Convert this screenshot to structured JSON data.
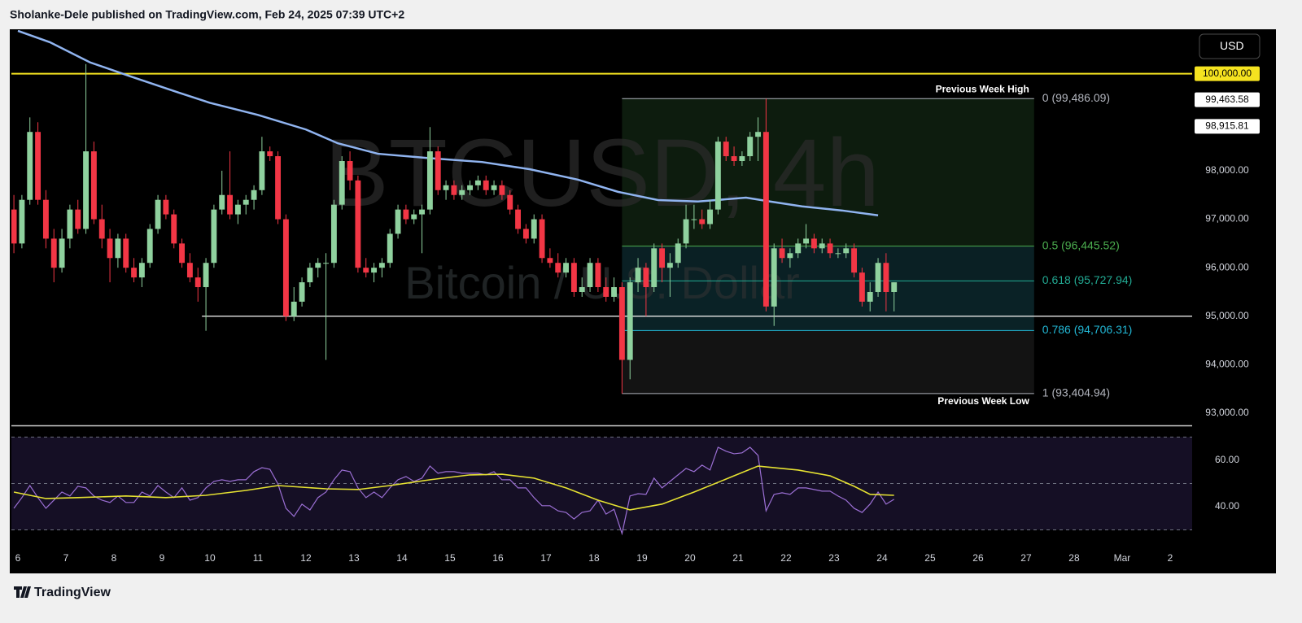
{
  "header": {
    "text": "Sholanke-Dele published on TradingView.com, Feb 24, 2025 07:39 UTC+2"
  },
  "footer": {
    "brand": "TradingView"
  },
  "chart_data": [
    {
      "type": "candlestick",
      "watermark": {
        "symbol": "BTCUSD, 4h",
        "description": "Bitcoin / U.S. Dollar"
      },
      "currency": "USD",
      "up_color": "#8fd19e",
      "down_color": "#f23645",
      "xlim": [
        -3.25,
        587
      ],
      "ylim": [
        92800,
        100900
      ],
      "yticks": [
        {
          "value": 93000,
          "label": "93,000.00"
        },
        {
          "value": 94000,
          "label": "94,000.00"
        },
        {
          "value": 95000,
          "label": "95,000.00"
        },
        {
          "value": 96000,
          "label": "96,000.00"
        },
        {
          "value": 97000,
          "label": "97,000.00"
        },
        {
          "value": 98000,
          "label": "98,000.00"
        }
      ],
      "xticks": [
        {
          "value": 0,
          "label": "6"
        },
        {
          "value": 24,
          "label": "7"
        },
        {
          "value": 48,
          "label": "8"
        },
        {
          "value": 72,
          "label": "9"
        },
        {
          "value": 96,
          "label": "10"
        },
        {
          "value": 120,
          "label": "11"
        },
        {
          "value": 144,
          "label": "12"
        },
        {
          "value": 168,
          "label": "13"
        },
        {
          "value": 192,
          "label": "14"
        },
        {
          "value": 216,
          "label": "15"
        },
        {
          "value": 240,
          "label": "16"
        },
        {
          "value": 264,
          "label": "17"
        },
        {
          "value": 288,
          "label": "18"
        },
        {
          "value": 312,
          "label": "19"
        },
        {
          "value": 336,
          "label": "20"
        },
        {
          "value": 360,
          "label": "21"
        },
        {
          "value": 384,
          "label": "22"
        },
        {
          "value": 408,
          "label": "23"
        },
        {
          "value": 432,
          "label": "24"
        },
        {
          "value": 456,
          "label": "25"
        },
        {
          "value": 480,
          "label": "26"
        },
        {
          "value": 504,
          "label": "27"
        },
        {
          "value": 528,
          "label": "28"
        },
        {
          "value": 552,
          "label": "Mar"
        },
        {
          "value": 576,
          "label": "2"
        }
      ],
      "grid": false,
      "x": [
        -2,
        2,
        6,
        10,
        14,
        18,
        22,
        26,
        30,
        34,
        38,
        42,
        46,
        50,
        54,
        58,
        62,
        66,
        70,
        74,
        78,
        82,
        86,
        90,
        94,
        98,
        102,
        106,
        110,
        114,
        118,
        122,
        126,
        130,
        134,
        138,
        142,
        146,
        150,
        154,
        158,
        162,
        166,
        170,
        174,
        178,
        182,
        186,
        190,
        194,
        198,
        202,
        206,
        210,
        214,
        218,
        222,
        226,
        230,
        234,
        238,
        242,
        246,
        250,
        254,
        258,
        262,
        266,
        270,
        274,
        278,
        282,
        286,
        290,
        294,
        298,
        302,
        306,
        310,
        314,
        318,
        322,
        326,
        330,
        334,
        338,
        342,
        346,
        350,
        354,
        358,
        362,
        366,
        370,
        374,
        378,
        382,
        386,
        390,
        394,
        398,
        402,
        406,
        410,
        414,
        418,
        422,
        426,
        430,
        434,
        438
      ],
      "open": [
        97200,
        96500,
        97400,
        98800,
        97400,
        96600,
        96000,
        96600,
        97200,
        96800,
        98400,
        97000,
        96600,
        96200,
        96600,
        96000,
        95800,
        96100,
        96800,
        97400,
        97100,
        96500,
        96100,
        95800,
        95600,
        96100,
        97200,
        97500,
        97100,
        97300,
        97400,
        97600,
        98400,
        98300,
        97000,
        95000,
        95300,
        95700,
        96000,
        96100,
        96100,
        97300,
        98200,
        97800,
        96000,
        95900,
        96000,
        96100,
        96700,
        97200,
        97000,
        97100,
        97200,
        98400,
        97600,
        97700,
        97500,
        97600,
        97700,
        97800,
        97600,
        97700,
        97500,
        97200,
        96800,
        96600,
        97000,
        96200,
        96100,
        95900,
        96100,
        95500,
        95600,
        96100,
        95600,
        95400,
        95600,
        94100,
        95700,
        96000,
        95600,
        96400,
        96000,
        96100,
        96500,
        97000,
        97000,
        96900,
        97200,
        98600,
        98300,
        98200,
        98300,
        98700,
        98800,
        95200,
        96400,
        96200,
        96300,
        96500,
        96600,
        96400,
        96500,
        96300,
        96300,
        96400,
        95900,
        95300,
        95500,
        96100,
        95500
      ],
      "high": [
        97500,
        97500,
        99100,
        99000,
        97600,
        96800,
        96800,
        97300,
        97400,
        100200,
        98600,
        97300,
        96800,
        96700,
        96700,
        96200,
        96200,
        96900,
        97500,
        97500,
        97200,
        96600,
        96300,
        96000,
        96200,
        97300,
        98000,
        98400,
        97400,
        97500,
        97700,
        98700,
        98500,
        98400,
        97100,
        95600,
        95800,
        96100,
        96200,
        96300,
        97400,
        98300,
        98400,
        97900,
        96200,
        96100,
        96200,
        96800,
        97300,
        97300,
        97200,
        97300,
        98900,
        98500,
        97800,
        97800,
        97700,
        97800,
        97900,
        97900,
        97800,
        97800,
        97600,
        97300,
        96900,
        97100,
        97100,
        96400,
        96300,
        96200,
        96200,
        95800,
        96200,
        96200,
        95800,
        95800,
        95700,
        95800,
        96200,
        96100,
        96500,
        96500,
        96300,
        96600,
        97300,
        97300,
        97200,
        97400,
        98700,
        98700,
        98500,
        98400,
        98800,
        99100,
        99486,
        96500,
        96600,
        96400,
        96600,
        96900,
        96700,
        96600,
        96600,
        96400,
        96500,
        96500,
        96000,
        95700,
        96200,
        96300,
        95700
      ],
      "low": [
        96300,
        96400,
        97300,
        97300,
        96400,
        95700,
        95900,
        96400,
        96700,
        96700,
        96900,
        96400,
        95700,
        96000,
        95900,
        95700,
        95600,
        96000,
        96700,
        97000,
        96400,
        96000,
        95700,
        95300,
        94700,
        96000,
        97100,
        97000,
        96900,
        97100,
        97200,
        97500,
        98200,
        96900,
        94900,
        94900,
        95200,
        95600,
        95800,
        94100,
        96000,
        97200,
        97600,
        95900,
        95800,
        95700,
        95800,
        96000,
        96600,
        96900,
        96900,
        96300,
        97100,
        97500,
        97400,
        97400,
        97400,
        97500,
        97600,
        97500,
        97500,
        97400,
        97100,
        96700,
        96500,
        96500,
        96100,
        96000,
        95800,
        95800,
        95400,
        95400,
        95500,
        95500,
        95300,
        95300,
        93405,
        93700,
        95500,
        95000,
        95500,
        95700,
        95400,
        96000,
        96400,
        96800,
        96800,
        96800,
        97100,
        98200,
        98100,
        98100,
        98200,
        98200,
        95100,
        94800,
        96100,
        96000,
        96200,
        96400,
        96300,
        96300,
        96200,
        96200,
        96200,
        95800,
        95200,
        95100,
        95400,
        95100,
        95100
      ],
      "close": [
        96500,
        97400,
        98800,
        97400,
        96600,
        96000,
        96600,
        97200,
        96800,
        98400,
        97000,
        96600,
        96200,
        96600,
        96000,
        95800,
        96100,
        96800,
        97400,
        97100,
        96500,
        96100,
        95800,
        95600,
        96100,
        97200,
        97500,
        97100,
        97300,
        97400,
        97600,
        98400,
        98300,
        97000,
        95000,
        95300,
        95700,
        96000,
        96100,
        96100,
        97300,
        98200,
        97800,
        96000,
        95900,
        96000,
        96100,
        96700,
        97200,
        97000,
        97100,
        97200,
        98400,
        97600,
        97700,
        97500,
        97600,
        97700,
        97800,
        97600,
        97700,
        97500,
        97200,
        96800,
        96600,
        97000,
        96200,
        96100,
        95900,
        96100,
        95500,
        95600,
        96100,
        95600,
        95400,
        95600,
        94100,
        95700,
        96000,
        95600,
        96400,
        96000,
        96100,
        96500,
        97000,
        97000,
        96900,
        97200,
        98600,
        98300,
        98200,
        98300,
        98700,
        98800,
        95200,
        96400,
        96200,
        96300,
        96500,
        96600,
        96400,
        96500,
        96300,
        96300,
        96400,
        95900,
        95300,
        95500,
        96100,
        95500,
        95700
      ],
      "series": [
        {
          "color": "#90b4f0",
          "x": [
            0,
            16,
            36,
            56,
            80,
            96,
            120,
            144,
            160,
            180,
            204,
            232,
            256,
            280,
            300,
            320,
            340,
            364,
            376,
            392,
            412,
            430
          ],
          "values": [
            100885,
            100650,
            100235,
            99950,
            99615,
            99400,
            99150,
            98850,
            98565,
            98350,
            98265,
            98180,
            98030,
            97815,
            97565,
            97395,
            97365,
            97445,
            97365,
            97265,
            97180,
            97080
          ]
        }
      ],
      "horizontal_lines": [
        {
          "value": 100000,
          "color": "#f5e320"
        },
        {
          "value": 95000,
          "color": "#e6e6e6",
          "x_start": 92
        }
      ],
      "price_labels": [
        {
          "value": 100000,
          "label": "100,000.00",
          "color": "#f5e320"
        },
        {
          "value": 99463.58,
          "label": "99,463.58",
          "color": "#ffffff"
        },
        {
          "value": 98915.81,
          "label": "98,915.81",
          "color": "#ffffff"
        }
      ],
      "fib": {
        "x": [
          302,
          508
        ],
        "high_label": "Previous Week High",
        "low_label": "Previous Week Low",
        "levels": [
          {
            "value": 99486.09,
            "label": "0 (99,486.09)",
            "color": "#b2b5be",
            "fill": "#0d1c0e"
          },
          {
            "value": 96445.52,
            "label": "0.5 (96,445.52)",
            "color": "#4caf50",
            "fill": "#0a2024"
          },
          {
            "value": 95727.94,
            "label": "0.618 (95,727.94)",
            "color": "#22ab94",
            "fill": "#0a2226"
          },
          {
            "value": 94706.31,
            "label": "0.786 (94,706.31)",
            "color": "#22b8d6",
            "fill": "#131313"
          },
          {
            "value": 93404.94,
            "label": "1 (93,404.94)",
            "color": "#b2b5be"
          }
        ]
      }
    },
    {
      "type": "line",
      "ylim": [
        20,
        73.3
      ],
      "yticks": [
        {
          "value": 40,
          "label": "40.00"
        },
        {
          "value": 60,
          "label": "60.00"
        }
      ],
      "levels": [
        70,
        50,
        30
      ],
      "band_color": "#150f25",
      "level_color": "#6e7180",
      "x": [
        -2,
        2,
        6,
        10,
        14,
        18,
        22,
        26,
        30,
        34,
        38,
        42,
        46,
        50,
        54,
        58,
        62,
        66,
        70,
        74,
        78,
        82,
        86,
        90,
        94,
        98,
        102,
        106,
        110,
        114,
        118,
        122,
        126,
        130,
        134,
        138,
        142,
        146,
        150,
        154,
        158,
        162,
        166,
        170,
        174,
        178,
        182,
        186,
        190,
        194,
        198,
        202,
        206,
        210,
        214,
        218,
        222,
        226,
        230,
        234,
        238,
        242,
        246,
        250,
        254,
        258,
        262,
        266,
        270,
        274,
        278,
        282,
        286,
        290,
        294,
        298,
        302,
        306,
        310,
        314,
        318,
        322,
        326,
        330,
        334,
        338,
        342,
        346,
        350,
        354,
        358,
        362,
        366,
        370,
        374,
        378,
        382,
        386,
        390,
        394,
        398,
        402,
        406,
        410,
        414,
        418,
        422,
        426,
        430,
        434,
        438
      ],
      "series": [
        {
          "color": "#9b6fd4",
          "values": [
            39.3,
            43.9,
            49.1,
            43.9,
            39.3,
            42.8,
            46.3,
            44.6,
            48.8,
            48.1,
            44.6,
            42.8,
            41.8,
            44.6,
            41.8,
            41.8,
            46.3,
            44.6,
            49.1,
            46.3,
            43.9,
            48.1,
            42.8,
            43.9,
            48.1,
            50.9,
            51.6,
            50.9,
            51.6,
            51.6,
            55.1,
            56.8,
            56.1,
            49.8,
            39.3,
            35.8,
            41.1,
            38.6,
            43.9,
            46.3,
            51.6,
            55.8,
            55.1,
            48.1,
            43.9,
            46.3,
            43.9,
            48.1,
            51.6,
            53.0,
            50.9,
            52.3,
            57.5,
            54.4,
            55.1,
            55.1,
            54.4,
            54.4,
            54.4,
            53.7,
            55.1,
            51.6,
            51.6,
            48.1,
            48.1,
            43.9,
            40.4,
            40.4,
            38.2,
            37.5,
            34.7,
            37.5,
            38.2,
            42.8,
            36.8,
            38.9,
            28.4,
            44.6,
            45.6,
            45.3,
            52.3,
            48.1,
            50.9,
            53.7,
            56.5,
            55.1,
            57.9,
            55.8,
            65.6,
            63.9,
            62.8,
            63.2,
            65.6,
            62.1,
            38.2,
            45.3,
            46.0,
            45.3,
            48.1,
            48.1,
            47.4,
            46.7,
            46.7,
            44.6,
            42.8,
            39.3,
            37.5,
            41.1,
            46.3,
            41.1,
            43.2
          ]
        },
        {
          "color": "#e6e232",
          "x": [
            -2,
            14,
            30,
            54,
            74,
            94,
            114,
            130,
            154,
            170,
            186,
            206,
            226,
            242,
            258,
            274,
            290,
            306,
            322,
            338,
            358,
            370,
            390,
            406,
            418,
            426,
            438
          ],
          "values": [
            46.3,
            43.5,
            43.9,
            44.6,
            43.9,
            44.9,
            47.0,
            49.1,
            47.7,
            47.4,
            49.1,
            51.6,
            53.7,
            54.0,
            52.3,
            48.1,
            42.8,
            38.6,
            41.1,
            46.3,
            53.3,
            57.5,
            55.8,
            53.3,
            48.8,
            45.3,
            44.9
          ]
        }
      ]
    }
  ]
}
